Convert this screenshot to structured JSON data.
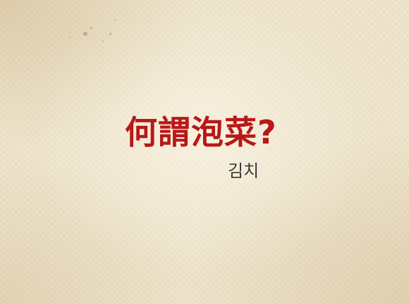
{
  "heading": {
    "title": "何謂泡菜?",
    "subtitle": "김치"
  },
  "colors": {
    "background": "#efe5cd",
    "title": "#b81818",
    "subtitle": "#3a3a3a"
  }
}
